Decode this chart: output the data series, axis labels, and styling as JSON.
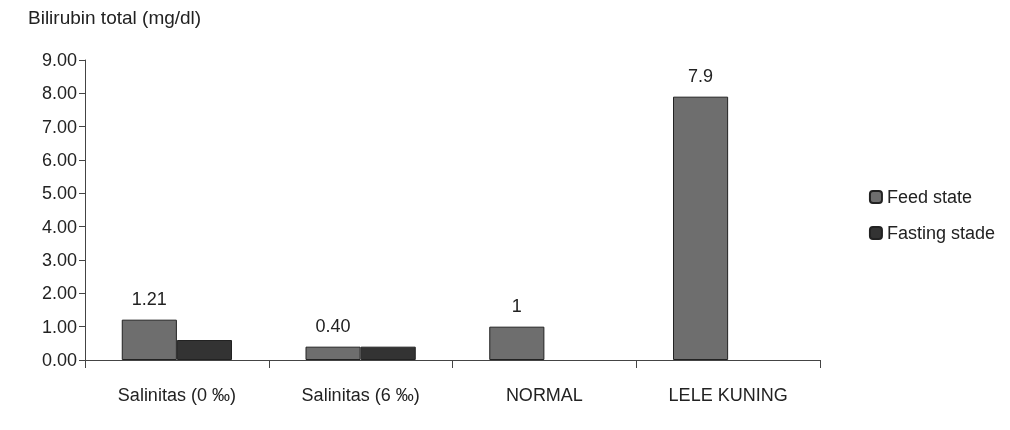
{
  "chart_data": {
    "type": "bar",
    "ylabel": "Bilirubin total (mg/dl)",
    "categories": [
      "Salinitas (0 ‰)",
      "Salinitas (6 ‰)",
      "NORMAL",
      "LELE KUNING"
    ],
    "series": [
      {
        "name": "Feed state",
        "color": "#6e6e6e",
        "values": [
          1.21,
          0.4,
          1,
          7.9
        ],
        "value_labels": [
          "1.21",
          "0.40",
          "1",
          "7.9"
        ]
      },
      {
        "name": "Fasting stade",
        "color": "#333333",
        "values": [
          0.6,
          0.4,
          null,
          null
        ]
      }
    ],
    "ylim": [
      0,
      9
    ],
    "yticks": [
      {
        "value": 0,
        "label": "0.00"
      },
      {
        "value": 1,
        "label": "1.00"
      },
      {
        "value": 2,
        "label": "2.00"
      },
      {
        "value": 3,
        "label": "3.00"
      },
      {
        "value": 4,
        "label": "4.00"
      },
      {
        "value": 5,
        "label": "5.00"
      },
      {
        "value": 6,
        "label": "6.00"
      },
      {
        "value": 7,
        "label": "7.00"
      },
      {
        "value": 8,
        "label": "8.00"
      },
      {
        "value": 9,
        "label": "9.00"
      }
    ],
    "grid": false,
    "legend": "right"
  }
}
